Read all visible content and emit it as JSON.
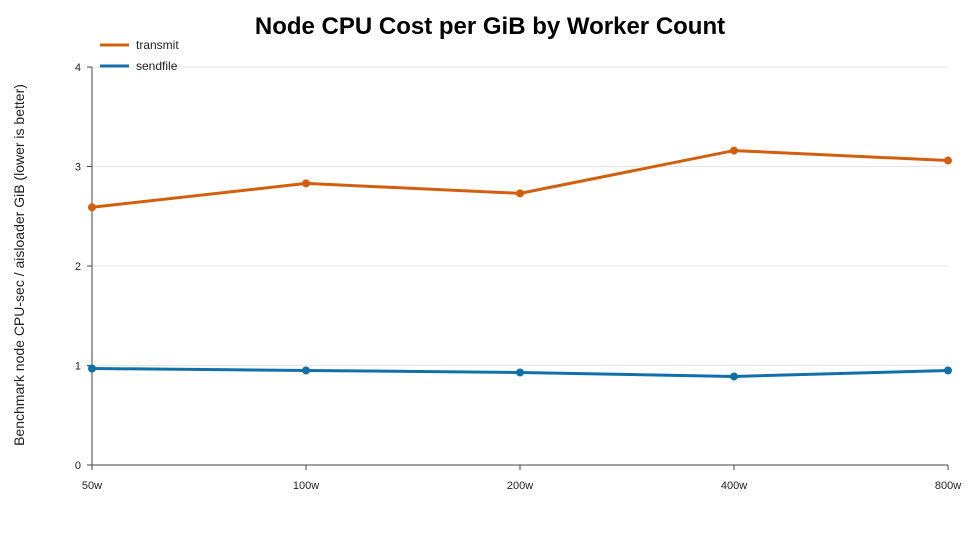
{
  "chart_data": {
    "type": "line",
    "title": "Node CPU Cost per GiB by Worker Count",
    "xlabel": "",
    "ylabel": "Benchmark node CPU-sec / aisloader GiB (lower is better)",
    "categories": [
      "50w",
      "100w",
      "200w",
      "400w",
      "800w"
    ],
    "ylim": [
      0,
      4
    ],
    "yticks": [
      "0",
      "1",
      "2",
      "3",
      "4"
    ],
    "grid": true,
    "legend": "top-left",
    "series": [
      {
        "name": "transmit",
        "color": "#d35f0e",
        "values": [
          2.59,
          2.83,
          2.73,
          3.16,
          3.06
        ]
      },
      {
        "name": "sendfile",
        "color": "#1170aa",
        "values": [
          0.97,
          0.95,
          0.93,
          0.89,
          0.95
        ]
      }
    ]
  }
}
